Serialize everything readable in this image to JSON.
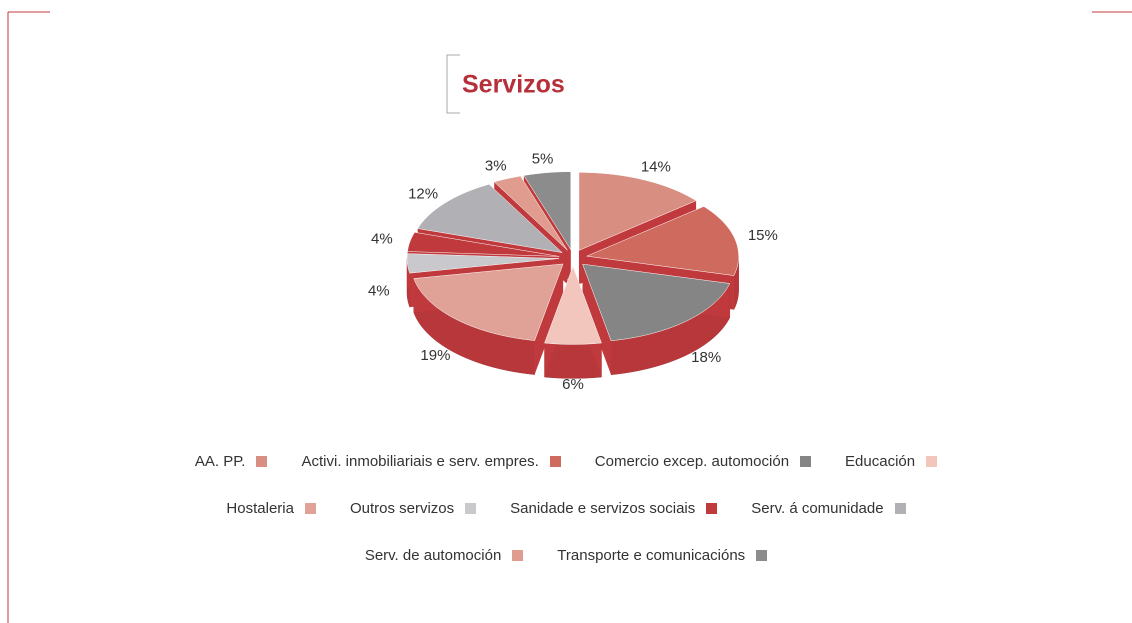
{
  "chart_data": {
    "type": "pie",
    "title": "Servizos",
    "categories": [
      "AA. PP.",
      "Activi. inmobiliariais e serv. empres.",
      "Comercio excep. automoción",
      "Educación",
      "Hostaleria",
      "Outros servizos",
      "Sanidade e servizos sociais",
      "Serv. á comunidade",
      "Serv. de automoción",
      "Transporte e comunicacións"
    ],
    "values": [
      14,
      15,
      18,
      6,
      19,
      4,
      4,
      12,
      3,
      5
    ],
    "value_labels": [
      "14%",
      "15%",
      "18%",
      "6%",
      "19%",
      "4%",
      "4%",
      "12%",
      "3%",
      "5%"
    ],
    "colors": [
      "#d98e82",
      "#cf6b5e",
      "#858585",
      "#f2c6bd",
      "#e0a196",
      "#c9c9cd",
      "#c0393d",
      "#b0b0b5",
      "#df9c8f",
      "#8c8c8c"
    ]
  }
}
